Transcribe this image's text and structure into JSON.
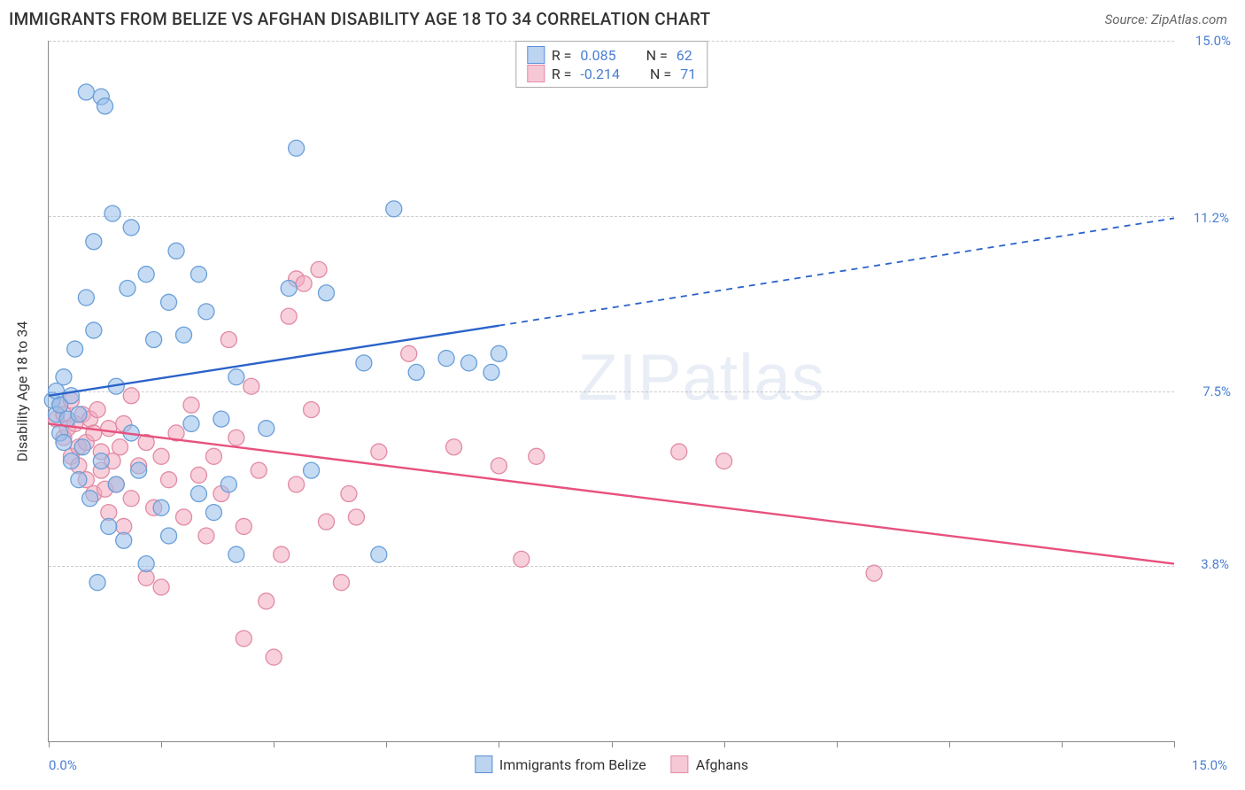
{
  "header": {
    "title": "IMMIGRANTS FROM BELIZE VS AFGHAN DISABILITY AGE 18 TO 34 CORRELATION CHART",
    "source_prefix": "Source: ",
    "source_name": "ZipAtlas.com"
  },
  "chart": {
    "type": "scatter",
    "background_color": "#ffffff",
    "grid_color": "#cccccc",
    "axis_color": "#888888",
    "label_color": "#4a7fd4",
    "text_color": "#333333",
    "y_axis_title": "Disability Age 18 to 34",
    "xlim": [
      0,
      15
    ],
    "ylim": [
      0,
      15
    ],
    "x_ticks": [
      0,
      1.5,
      3,
      4.5,
      6,
      7.5,
      9,
      10.5,
      12,
      13.5,
      15
    ],
    "y_gridlines": [
      {
        "value": 15,
        "label": "15.0%"
      },
      {
        "value": 11.25,
        "label": ""
      },
      {
        "value": 7.5,
        "label": "7.5%"
      },
      {
        "value": 3.75,
        "label": ""
      },
      {
        "value": 0,
        "label": ""
      }
    ],
    "x_axis_min_label": "0.0%",
    "x_axis_max_label": "15.0%",
    "watermark": "ZIPatlas",
    "legend_top": [
      {
        "swatch_fill": "#bcd4f0",
        "swatch_stroke": "#5a8fd6",
        "r_label": "R =",
        "r_value": "0.085",
        "n_label": "N =",
        "n_value": "62"
      },
      {
        "swatch_fill": "#f6c8d6",
        "swatch_stroke": "#e58aa6",
        "r_label": "R =",
        "r_value": "-0.214",
        "n_label": "N =",
        "n_value": "71"
      }
    ],
    "legend_bottom": [
      {
        "swatch_fill": "#bcd4f0",
        "swatch_stroke": "#5a8fd6",
        "label": "Immigrants from Belize"
      },
      {
        "swatch_fill": "#f6c8d6",
        "swatch_stroke": "#e58aa6",
        "label": "Afghans"
      }
    ],
    "series_a": {
      "name": "Immigrants from Belize",
      "marker_fill": "rgba(150,190,235,0.55)",
      "marker_stroke": "#6a9fd8",
      "marker_radius": 9,
      "line_color": "#2a62c9",
      "line_width": 2.4,
      "trend_start": {
        "x": 0,
        "y": 7.4
      },
      "trend_solid_end": {
        "x": 6.0,
        "y": 8.9
      },
      "trend_dash_end": {
        "x": 15,
        "y": 11.2
      },
      "end_label": "11.2%",
      "points": [
        [
          0.05,
          7.3
        ],
        [
          0.1,
          7.0
        ],
        [
          0.1,
          7.5
        ],
        [
          0.15,
          6.6
        ],
        [
          0.15,
          7.2
        ],
        [
          0.2,
          7.8
        ],
        [
          0.2,
          6.4
        ],
        [
          0.25,
          6.9
        ],
        [
          0.3,
          7.4
        ],
        [
          0.3,
          6.0
        ],
        [
          0.35,
          8.4
        ],
        [
          0.4,
          5.6
        ],
        [
          0.4,
          7.0
        ],
        [
          0.45,
          6.3
        ],
        [
          0.5,
          9.5
        ],
        [
          0.5,
          13.9
        ],
        [
          0.55,
          5.2
        ],
        [
          0.6,
          8.8
        ],
        [
          0.6,
          10.7
        ],
        [
          0.65,
          3.4
        ],
        [
          0.7,
          6.0
        ],
        [
          0.7,
          13.8
        ],
        [
          0.75,
          13.6
        ],
        [
          0.8,
          4.6
        ],
        [
          0.85,
          11.3
        ],
        [
          0.9,
          5.5
        ],
        [
          0.9,
          7.6
        ],
        [
          1.0,
          4.3
        ],
        [
          1.05,
          9.7
        ],
        [
          1.1,
          11.0
        ],
        [
          1.1,
          6.6
        ],
        [
          1.2,
          5.8
        ],
        [
          1.3,
          10.0
        ],
        [
          1.3,
          3.8
        ],
        [
          1.4,
          8.6
        ],
        [
          1.5,
          5.0
        ],
        [
          1.6,
          9.4
        ],
        [
          1.6,
          4.4
        ],
        [
          1.7,
          10.5
        ],
        [
          1.8,
          8.7
        ],
        [
          1.9,
          6.8
        ],
        [
          2.0,
          5.3
        ],
        [
          2.0,
          10.0
        ],
        [
          2.1,
          9.2
        ],
        [
          2.2,
          4.9
        ],
        [
          2.3,
          6.9
        ],
        [
          2.4,
          5.5
        ],
        [
          2.5,
          4.0
        ],
        [
          2.5,
          7.8
        ],
        [
          2.9,
          6.7
        ],
        [
          3.2,
          9.7
        ],
        [
          3.3,
          12.7
        ],
        [
          3.5,
          5.8
        ],
        [
          3.7,
          9.6
        ],
        [
          4.2,
          8.1
        ],
        [
          4.4,
          4.0
        ],
        [
          4.6,
          11.4
        ],
        [
          4.9,
          7.9
        ],
        [
          5.3,
          8.2
        ],
        [
          5.6,
          8.1
        ],
        [
          5.9,
          7.9
        ],
        [
          6.0,
          8.3
        ]
      ]
    },
    "series_b": {
      "name": "Afghans",
      "marker_fill": "rgba(240,170,190,0.55)",
      "marker_stroke": "#e28aa4",
      "marker_radius": 9,
      "line_color": "#e8517e",
      "line_width": 2.4,
      "trend_start": {
        "x": 0,
        "y": 6.8
      },
      "trend_solid_end": {
        "x": 15,
        "y": 3.8
      },
      "end_label": "3.8%",
      "points": [
        [
          0.1,
          6.9
        ],
        [
          0.15,
          7.2
        ],
        [
          0.2,
          6.5
        ],
        [
          0.2,
          7.0
        ],
        [
          0.25,
          6.7
        ],
        [
          0.3,
          7.3
        ],
        [
          0.3,
          6.1
        ],
        [
          0.35,
          6.8
        ],
        [
          0.4,
          6.3
        ],
        [
          0.4,
          5.9
        ],
        [
          0.45,
          7.0
        ],
        [
          0.5,
          6.4
        ],
        [
          0.5,
          5.6
        ],
        [
          0.55,
          6.9
        ],
        [
          0.6,
          5.3
        ],
        [
          0.6,
          6.6
        ],
        [
          0.65,
          7.1
        ],
        [
          0.7,
          5.8
        ],
        [
          0.7,
          6.2
        ],
        [
          0.75,
          5.4
        ],
        [
          0.8,
          6.7
        ],
        [
          0.8,
          4.9
        ],
        [
          0.85,
          6.0
        ],
        [
          0.9,
          5.5
        ],
        [
          0.95,
          6.3
        ],
        [
          1.0,
          4.6
        ],
        [
          1.0,
          6.8
        ],
        [
          1.1,
          5.2
        ],
        [
          1.1,
          7.4
        ],
        [
          1.2,
          5.9
        ],
        [
          1.3,
          3.5
        ],
        [
          1.3,
          6.4
        ],
        [
          1.4,
          5.0
        ],
        [
          1.5,
          6.1
        ],
        [
          1.5,
          3.3
        ],
        [
          1.6,
          5.6
        ],
        [
          1.7,
          6.6
        ],
        [
          1.8,
          4.8
        ],
        [
          1.9,
          7.2
        ],
        [
          2.0,
          5.7
        ],
        [
          2.1,
          4.4
        ],
        [
          2.2,
          6.1
        ],
        [
          2.3,
          5.3
        ],
        [
          2.4,
          8.6
        ],
        [
          2.5,
          6.5
        ],
        [
          2.6,
          4.6
        ],
        [
          2.6,
          2.2
        ],
        [
          2.7,
          7.6
        ],
        [
          2.8,
          5.8
        ],
        [
          2.9,
          3.0
        ],
        [
          3.0,
          1.8
        ],
        [
          3.1,
          4.0
        ],
        [
          3.2,
          9.1
        ],
        [
          3.3,
          5.5
        ],
        [
          3.3,
          9.9
        ],
        [
          3.4,
          9.8
        ],
        [
          3.5,
          7.1
        ],
        [
          3.6,
          10.1
        ],
        [
          3.7,
          4.7
        ],
        [
          3.9,
          3.4
        ],
        [
          4.0,
          5.3
        ],
        [
          4.1,
          4.8
        ],
        [
          4.4,
          6.2
        ],
        [
          4.8,
          8.3
        ],
        [
          5.4,
          6.3
        ],
        [
          6.0,
          5.9
        ],
        [
          6.3,
          3.9
        ],
        [
          6.5,
          6.1
        ],
        [
          8.4,
          6.2
        ],
        [
          11.0,
          3.6
        ],
        [
          9.0,
          6.0
        ]
      ]
    }
  }
}
